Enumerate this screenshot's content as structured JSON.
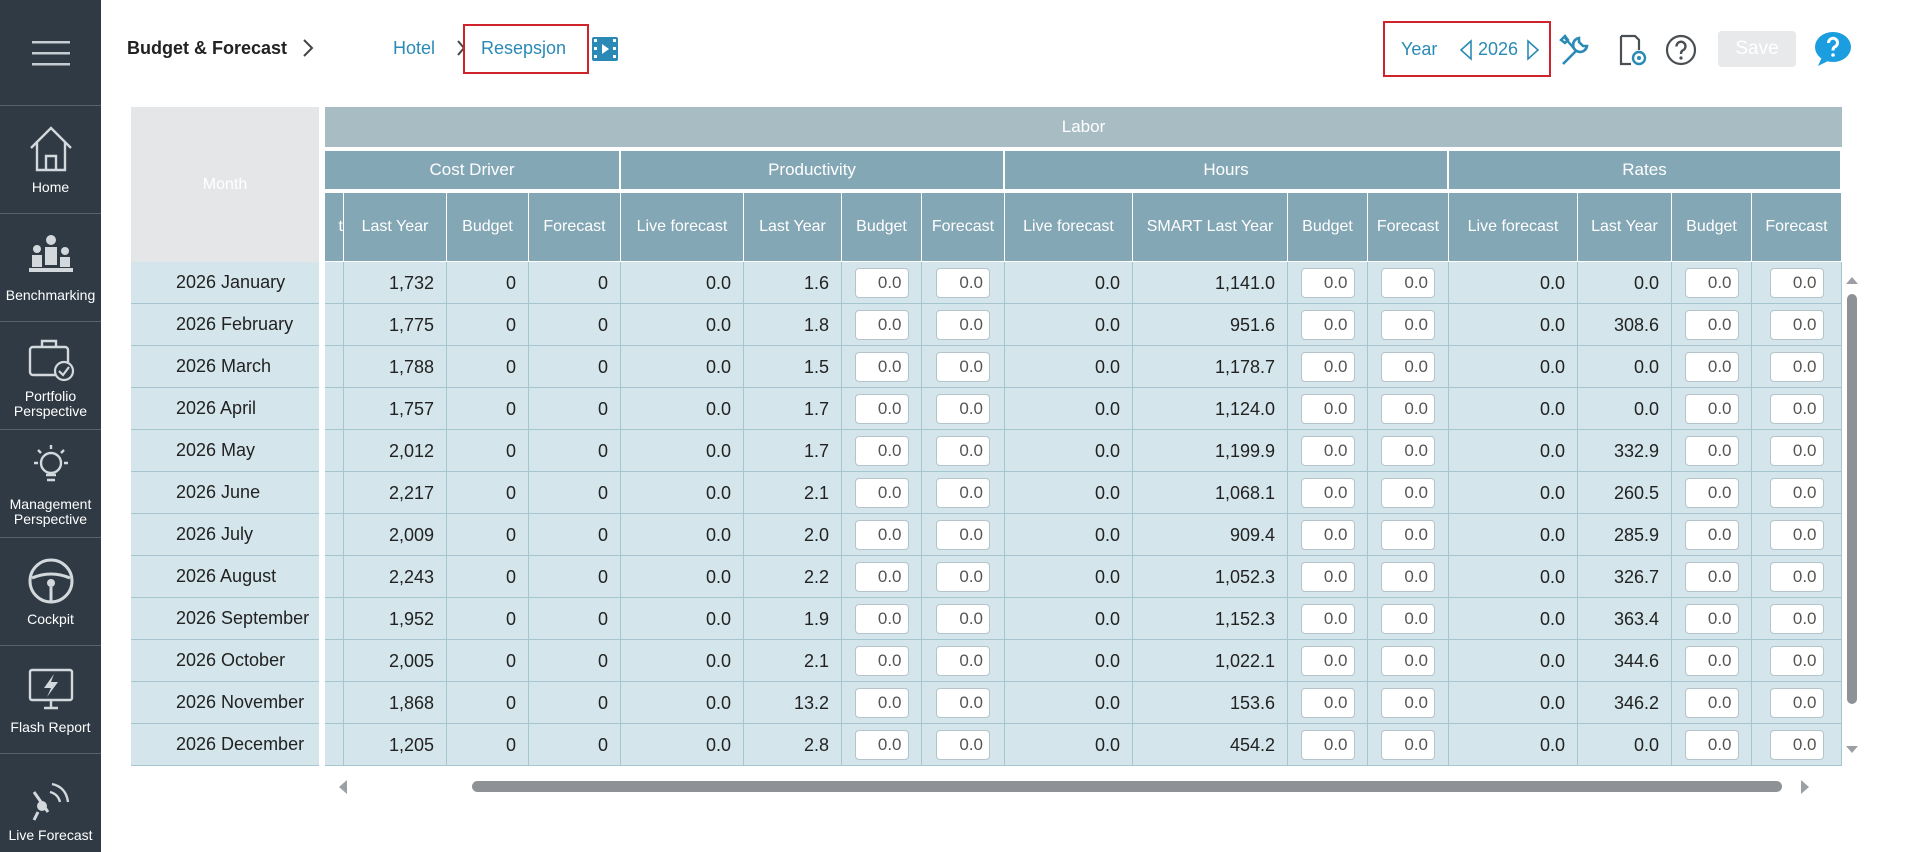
{
  "sidebar": {
    "items": [
      {
        "label": "Home",
        "icon": "home-icon"
      },
      {
        "label": "Benchmarking",
        "icon": "benchmark-icon"
      },
      {
        "label": "Portfolio\nPerspective",
        "icon": "briefcase-icon"
      },
      {
        "label": "Management\nPerspective",
        "icon": "lightbulb-icon"
      },
      {
        "label": "Cockpit",
        "icon": "steering-wheel-icon"
      },
      {
        "label": "Flash Report",
        "icon": "monitor-flash-icon"
      },
      {
        "label": "Live Forecast",
        "icon": "satellite-icon"
      }
    ]
  },
  "header": {
    "title": "Budget & Forecast",
    "crumb_hotel": "Hotel",
    "crumb_department": "Resepsjon",
    "year_label": "Year",
    "year_value": "2026",
    "save_label": "Save"
  },
  "table": {
    "month_header": "Month",
    "top_group": "Labor",
    "groups": [
      "Cost Driver",
      "Productivity",
      "Hours",
      "Rates"
    ],
    "columns": [
      "t",
      "Last Year",
      "Budget",
      "Forecast",
      "Live forecast",
      "Last Year",
      "Budget",
      "Forecast",
      "Live forecast",
      "SMART Last Year",
      "Budget",
      "Forecast",
      "Live forecast",
      "Last Year",
      "Budget",
      "Forecast"
    ],
    "rows": [
      {
        "month": "2026 January",
        "cd_ly": "1,732",
        "cd_b": "0",
        "cd_f": "0",
        "p_lf": "0.0",
        "p_ly": "1.6",
        "p_b": "0.0",
        "p_f": "0.0",
        "h_lf": "0.0",
        "h_sly": "1,141.0",
        "h_b": "0.0",
        "h_f": "0.0",
        "r_lf": "0.0",
        "r_ly": "0.0",
        "r_b": "0.0",
        "r_f": "0.0"
      },
      {
        "month": "2026 February",
        "cd_ly": "1,775",
        "cd_b": "0",
        "cd_f": "0",
        "p_lf": "0.0",
        "p_ly": "1.8",
        "p_b": "0.0",
        "p_f": "0.0",
        "h_lf": "0.0",
        "h_sly": "951.6",
        "h_b": "0.0",
        "h_f": "0.0",
        "r_lf": "0.0",
        "r_ly": "308.6",
        "r_b": "0.0",
        "r_f": "0.0"
      },
      {
        "month": "2026 March",
        "cd_ly": "1,788",
        "cd_b": "0",
        "cd_f": "0",
        "p_lf": "0.0",
        "p_ly": "1.5",
        "p_b": "0.0",
        "p_f": "0.0",
        "h_lf": "0.0",
        "h_sly": "1,178.7",
        "h_b": "0.0",
        "h_f": "0.0",
        "r_lf": "0.0",
        "r_ly": "0.0",
        "r_b": "0.0",
        "r_f": "0.0"
      },
      {
        "month": "2026 April",
        "cd_ly": "1,757",
        "cd_b": "0",
        "cd_f": "0",
        "p_lf": "0.0",
        "p_ly": "1.7",
        "p_b": "0.0",
        "p_f": "0.0",
        "h_lf": "0.0",
        "h_sly": "1,124.0",
        "h_b": "0.0",
        "h_f": "0.0",
        "r_lf": "0.0",
        "r_ly": "0.0",
        "r_b": "0.0",
        "r_f": "0.0"
      },
      {
        "month": "2026 May",
        "cd_ly": "2,012",
        "cd_b": "0",
        "cd_f": "0",
        "p_lf": "0.0",
        "p_ly": "1.7",
        "p_b": "0.0",
        "p_f": "0.0",
        "h_lf": "0.0",
        "h_sly": "1,199.9",
        "h_b": "0.0",
        "h_f": "0.0",
        "r_lf": "0.0",
        "r_ly": "332.9",
        "r_b": "0.0",
        "r_f": "0.0"
      },
      {
        "month": "2026 June",
        "cd_ly": "2,217",
        "cd_b": "0",
        "cd_f": "0",
        "p_lf": "0.0",
        "p_ly": "2.1",
        "p_b": "0.0",
        "p_f": "0.0",
        "h_lf": "0.0",
        "h_sly": "1,068.1",
        "h_b": "0.0",
        "h_f": "0.0",
        "r_lf": "0.0",
        "r_ly": "260.5",
        "r_b": "0.0",
        "r_f": "0.0"
      },
      {
        "month": "2026 July",
        "cd_ly": "2,009",
        "cd_b": "0",
        "cd_f": "0",
        "p_lf": "0.0",
        "p_ly": "2.0",
        "p_b": "0.0",
        "p_f": "0.0",
        "h_lf": "0.0",
        "h_sly": "909.4",
        "h_b": "0.0",
        "h_f": "0.0",
        "r_lf": "0.0",
        "r_ly": "285.9",
        "r_b": "0.0",
        "r_f": "0.0"
      },
      {
        "month": "2026 August",
        "cd_ly": "2,243",
        "cd_b": "0",
        "cd_f": "0",
        "p_lf": "0.0",
        "p_ly": "2.2",
        "p_b": "0.0",
        "p_f": "0.0",
        "h_lf": "0.0",
        "h_sly": "1,052.3",
        "h_b": "0.0",
        "h_f": "0.0",
        "r_lf": "0.0",
        "r_ly": "326.7",
        "r_b": "0.0",
        "r_f": "0.0"
      },
      {
        "month": "2026 September",
        "cd_ly": "1,952",
        "cd_b": "0",
        "cd_f": "0",
        "p_lf": "0.0",
        "p_ly": "1.9",
        "p_b": "0.0",
        "p_f": "0.0",
        "h_lf": "0.0",
        "h_sly": "1,152.3",
        "h_b": "0.0",
        "h_f": "0.0",
        "r_lf": "0.0",
        "r_ly": "363.4",
        "r_b": "0.0",
        "r_f": "0.0"
      },
      {
        "month": "2026 October",
        "cd_ly": "2,005",
        "cd_b": "0",
        "cd_f": "0",
        "p_lf": "0.0",
        "p_ly": "2.1",
        "p_b": "0.0",
        "p_f": "0.0",
        "h_lf": "0.0",
        "h_sly": "1,022.1",
        "h_b": "0.0",
        "h_f": "0.0",
        "r_lf": "0.0",
        "r_ly": "344.6",
        "r_b": "0.0",
        "r_f": "0.0"
      },
      {
        "month": "2026 November",
        "cd_ly": "1,868",
        "cd_b": "0",
        "cd_f": "0",
        "p_lf": "0.0",
        "p_ly": "13.2",
        "p_b": "0.0",
        "p_f": "0.0",
        "h_lf": "0.0",
        "h_sly": "153.6",
        "h_b": "0.0",
        "h_f": "0.0",
        "r_lf": "0.0",
        "r_ly": "346.2",
        "r_b": "0.0",
        "r_f": "0.0"
      },
      {
        "month": "2026 December",
        "cd_ly": "1,205",
        "cd_b": "0",
        "cd_f": "0",
        "p_lf": "0.0",
        "p_ly": "2.8",
        "p_b": "0.0",
        "p_f": "0.0",
        "h_lf": "0.0",
        "h_sly": "454.2",
        "h_b": "0.0",
        "h_f": "0.0",
        "r_lf": "0.0",
        "r_ly": "0.0",
        "r_b": "0.0",
        "r_f": "0.0"
      }
    ]
  },
  "colors": {
    "sidebar": "#2f3a44",
    "header_dark": "#84a7b6",
    "header_light": "#a8bcc4",
    "row_bg": "#d4e6ec",
    "accent_link": "#2a8ab5",
    "highlight_border": "#d0242c",
    "chat_icon": "#1a9ee0"
  }
}
